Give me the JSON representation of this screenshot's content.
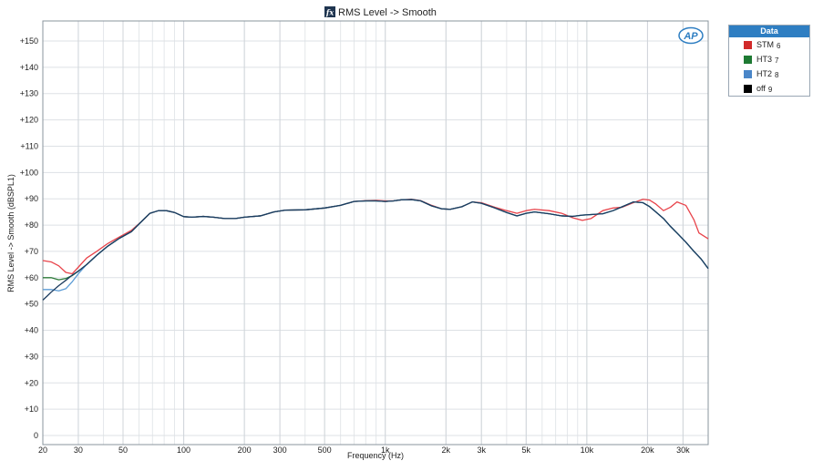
{
  "colors": {
    "accent": "#2e7ec2",
    "STM": "#e8434a",
    "HT3": "#2d7a3a",
    "HT2": "#5b9bd5",
    "off": "#1b3b5e"
  },
  "legend": {
    "title": "Data",
    "items": [
      {
        "label": "STM",
        "num": "6",
        "color": "#d12a2a"
      },
      {
        "label": "HT3",
        "num": "7",
        "color": "#1e7a33"
      },
      {
        "label": "HT2",
        "num": "8",
        "color": "#4a86c8"
      },
      {
        "label": "off",
        "num": "9",
        "color": "#000000"
      }
    ]
  },
  "logo": "AP",
  "chart_data": {
    "type": "line",
    "title": "RMS Level -> Smooth",
    "title_icon": "fx-icon",
    "xlabel": "Frequency (Hz)",
    "ylabel": "RMS Level -> Smooth (dBSPL1)",
    "x_scale": "log",
    "xlim": [
      20,
      40000
    ],
    "ylim": [
      0,
      155
    ],
    "grid": true,
    "x_ticks": [
      {
        "v": 20,
        "l": "20"
      },
      {
        "v": 30,
        "l": "30"
      },
      {
        "v": 50,
        "l": "50"
      },
      {
        "v": 100,
        "l": "100"
      },
      {
        "v": 200,
        "l": "200"
      },
      {
        "v": 300,
        "l": "300"
      },
      {
        "v": 500,
        "l": "500"
      },
      {
        "v": 1000,
        "l": "1k"
      },
      {
        "v": 2000,
        "l": "2k"
      },
      {
        "v": 3000,
        "l": "3k"
      },
      {
        "v": 5000,
        "l": "5k"
      },
      {
        "v": 10000,
        "l": "10k"
      },
      {
        "v": 20000,
        "l": "20k"
      },
      {
        "v": 30000,
        "l": "30k"
      }
    ],
    "y_ticks": [
      {
        "v": 0,
        "l": "0"
      },
      {
        "v": 10,
        "l": "+10"
      },
      {
        "v": 20,
        "l": "+20"
      },
      {
        "v": 30,
        "l": "+30"
      },
      {
        "v": 40,
        "l": "+40"
      },
      {
        "v": 50,
        "l": "+50"
      },
      {
        "v": 60,
        "l": "+60"
      },
      {
        "v": 70,
        "l": "+70"
      },
      {
        "v": 80,
        "l": "+80"
      },
      {
        "v": 90,
        "l": "+90"
      },
      {
        "v": 100,
        "l": "+100"
      },
      {
        "v": 110,
        "l": "+110"
      },
      {
        "v": 120,
        "l": "+120"
      },
      {
        "v": 130,
        "l": "+130"
      },
      {
        "v": 140,
        "l": "+140"
      },
      {
        "v": 150,
        "l": "+150"
      }
    ],
    "series": [
      {
        "name": "STM",
        "color": "#e8434a",
        "points": [
          [
            20,
            66.5
          ],
          [
            22,
            66
          ],
          [
            24,
            64.5
          ],
          [
            26,
            62
          ],
          [
            28,
            61.5
          ],
          [
            30,
            64
          ],
          [
            33,
            67.5
          ],
          [
            37,
            70
          ],
          [
            42,
            73
          ],
          [
            48,
            75.5
          ],
          [
            55,
            78
          ],
          [
            62,
            81.5
          ],
          [
            68,
            84.5
          ],
          [
            75,
            85.5
          ],
          [
            82,
            85.5
          ],
          [
            90,
            84.8
          ],
          [
            100,
            83.2
          ],
          [
            110,
            83
          ],
          [
            125,
            83.3
          ],
          [
            140,
            83
          ],
          [
            160,
            82.5
          ],
          [
            180,
            82.5
          ],
          [
            200,
            83
          ],
          [
            240,
            83.5
          ],
          [
            280,
            85
          ],
          [
            320,
            85.7
          ],
          [
            400,
            85.8
          ],
          [
            500,
            86.5
          ],
          [
            600,
            87.5
          ],
          [
            700,
            89
          ],
          [
            800,
            89.3
          ],
          [
            900,
            89.4
          ],
          [
            1000,
            89.2
          ],
          [
            1100,
            89.2
          ],
          [
            1200,
            89.6
          ],
          [
            1350,
            89.8
          ],
          [
            1500,
            89.3
          ],
          [
            1700,
            87.5
          ],
          [
            1900,
            86.2
          ],
          [
            2100,
            86
          ],
          [
            2400,
            87
          ],
          [
            2700,
            88.8
          ],
          [
            3000,
            88.5
          ],
          [
            3500,
            86.8
          ],
          [
            4000,
            85.5
          ],
          [
            4500,
            84.5
          ],
          [
            5000,
            85.5
          ],
          [
            5500,
            86
          ],
          [
            6500,
            85.5
          ],
          [
            7500,
            84.5
          ],
          [
            8500,
            82.8
          ],
          [
            9500,
            81.8
          ],
          [
            10500,
            82.5
          ],
          [
            12000,
            85.5
          ],
          [
            13500,
            86.5
          ],
          [
            15000,
            86.8
          ],
          [
            17000,
            88.5
          ],
          [
            19000,
            89.8
          ],
          [
            20500,
            89.5
          ],
          [
            22000,
            88
          ],
          [
            24000,
            85.5
          ],
          [
            26000,
            86.8
          ],
          [
            28000,
            88.8
          ],
          [
            31000,
            87.5
          ],
          [
            34000,
            82
          ],
          [
            36000,
            77
          ],
          [
            40000,
            74.8
          ]
        ]
      },
      {
        "name": "HT3",
        "color": "#2d7a3a",
        "points": [
          [
            20,
            60
          ],
          [
            22,
            60
          ],
          [
            24,
            59.2
          ],
          [
            26,
            59.7
          ],
          [
            28,
            60.8
          ],
          [
            30,
            62.5
          ],
          [
            33,
            65
          ],
          [
            37,
            68.5
          ],
          [
            42,
            72
          ],
          [
            48,
            75
          ],
          [
            55,
            77.5
          ],
          [
            62,
            81.5
          ],
          [
            68,
            84.5
          ],
          [
            75,
            85.5
          ],
          [
            82,
            85.5
          ],
          [
            90,
            84.8
          ],
          [
            100,
            83.2
          ],
          [
            110,
            83
          ],
          [
            125,
            83.3
          ],
          [
            140,
            83
          ],
          [
            160,
            82.5
          ],
          [
            180,
            82.5
          ],
          [
            200,
            83
          ],
          [
            240,
            83.5
          ],
          [
            280,
            85
          ],
          [
            320,
            85.7
          ],
          [
            400,
            85.8
          ],
          [
            500,
            86.5
          ],
          [
            600,
            87.5
          ],
          [
            700,
            89
          ],
          [
            800,
            89.2
          ],
          [
            900,
            89.2
          ],
          [
            1000,
            89
          ],
          [
            1100,
            89.2
          ],
          [
            1200,
            89.6
          ],
          [
            1350,
            89.7
          ],
          [
            1500,
            89.2
          ],
          [
            1700,
            87.3
          ],
          [
            1900,
            86.2
          ],
          [
            2100,
            86
          ],
          [
            2400,
            87
          ],
          [
            2700,
            88.8
          ],
          [
            3000,
            88.3
          ],
          [
            3500,
            86.5
          ],
          [
            4000,
            84.8
          ],
          [
            4500,
            83.5
          ],
          [
            5000,
            84.5
          ],
          [
            5500,
            85
          ],
          [
            6500,
            84.3
          ],
          [
            7500,
            83.5
          ],
          [
            8500,
            83.3
          ],
          [
            9500,
            83.8
          ],
          [
            10500,
            84
          ],
          [
            12000,
            84.3
          ],
          [
            13500,
            85.5
          ],
          [
            15000,
            87
          ],
          [
            17000,
            88.8
          ],
          [
            19000,
            88.5
          ],
          [
            20500,
            87
          ],
          [
            22000,
            85
          ],
          [
            24000,
            82.5
          ],
          [
            26000,
            79.5
          ],
          [
            28000,
            77
          ],
          [
            31000,
            73.5
          ],
          [
            34000,
            70
          ],
          [
            37000,
            67
          ],
          [
            40000,
            63.5
          ]
        ]
      },
      {
        "name": "HT2",
        "color": "#5b9bd5",
        "points": [
          [
            20,
            55.5
          ],
          [
            22,
            55.5
          ],
          [
            24,
            55
          ],
          [
            26,
            55.8
          ],
          [
            28,
            58.5
          ],
          [
            30,
            61.5
          ],
          [
            33,
            65
          ],
          [
            37,
            68.5
          ],
          [
            42,
            72
          ],
          [
            48,
            75
          ],
          [
            55,
            77.5
          ],
          [
            62,
            81.5
          ],
          [
            68,
            84.5
          ],
          [
            75,
            85.5
          ],
          [
            82,
            85.5
          ],
          [
            90,
            84.8
          ],
          [
            100,
            83.2
          ],
          [
            110,
            83
          ],
          [
            125,
            83.3
          ],
          [
            140,
            83
          ],
          [
            160,
            82.5
          ],
          [
            180,
            82.5
          ],
          [
            200,
            83
          ],
          [
            240,
            83.5
          ],
          [
            280,
            85
          ],
          [
            320,
            85.7
          ],
          [
            400,
            85.8
          ],
          [
            500,
            86.5
          ],
          [
            600,
            87.5
          ],
          [
            700,
            89
          ],
          [
            800,
            89.2
          ],
          [
            900,
            89.2
          ],
          [
            1000,
            89
          ],
          [
            1100,
            89.2
          ],
          [
            1200,
            89.6
          ],
          [
            1350,
            89.7
          ],
          [
            1500,
            89.2
          ],
          [
            1700,
            87.3
          ],
          [
            1900,
            86.2
          ],
          [
            2100,
            86
          ],
          [
            2400,
            87
          ],
          [
            2700,
            88.8
          ],
          [
            3000,
            88.3
          ],
          [
            3500,
            86.5
          ],
          [
            4000,
            84.8
          ],
          [
            4500,
            83.5
          ],
          [
            5000,
            84.5
          ],
          [
            5500,
            85
          ],
          [
            6500,
            84.3
          ],
          [
            7500,
            83.5
          ],
          [
            8500,
            83.3
          ],
          [
            9500,
            83.8
          ],
          [
            10500,
            84
          ],
          [
            12000,
            84.3
          ],
          [
            13500,
            85.5
          ],
          [
            15000,
            87
          ],
          [
            17000,
            88.8
          ],
          [
            19000,
            88.5
          ],
          [
            20500,
            87
          ],
          [
            22000,
            85
          ],
          [
            24000,
            82.5
          ],
          [
            26000,
            79.5
          ],
          [
            28000,
            77
          ],
          [
            31000,
            73.5
          ],
          [
            34000,
            70
          ],
          [
            37000,
            67
          ],
          [
            40000,
            63.5
          ]
        ]
      },
      {
        "name": "off",
        "color": "#1b3b5e",
        "points": [
          [
            20,
            51.5
          ],
          [
            21,
            53
          ],
          [
            22,
            54.5
          ],
          [
            24,
            57
          ],
          [
            26,
            59
          ],
          [
            28,
            61
          ],
          [
            30,
            62.5
          ],
          [
            33,
            65
          ],
          [
            37,
            68.5
          ],
          [
            42,
            72
          ],
          [
            48,
            75
          ],
          [
            55,
            77.5
          ],
          [
            62,
            81.5
          ],
          [
            68,
            84.5
          ],
          [
            75,
            85.5
          ],
          [
            82,
            85.5
          ],
          [
            90,
            84.8
          ],
          [
            100,
            83.2
          ],
          [
            110,
            83
          ],
          [
            125,
            83.3
          ],
          [
            140,
            83
          ],
          [
            160,
            82.5
          ],
          [
            180,
            82.5
          ],
          [
            200,
            83
          ],
          [
            240,
            83.5
          ],
          [
            280,
            85
          ],
          [
            320,
            85.7
          ],
          [
            400,
            85.8
          ],
          [
            500,
            86.5
          ],
          [
            600,
            87.5
          ],
          [
            700,
            89
          ],
          [
            800,
            89.2
          ],
          [
            900,
            89.2
          ],
          [
            1000,
            89
          ],
          [
            1100,
            89.2
          ],
          [
            1200,
            89.6
          ],
          [
            1350,
            89.7
          ],
          [
            1500,
            89.2
          ],
          [
            1700,
            87.3
          ],
          [
            1900,
            86.2
          ],
          [
            2100,
            86
          ],
          [
            2400,
            87
          ],
          [
            2700,
            88.8
          ],
          [
            3000,
            88.3
          ],
          [
            3500,
            86.5
          ],
          [
            4000,
            84.8
          ],
          [
            4500,
            83.5
          ],
          [
            5000,
            84.5
          ],
          [
            5500,
            85
          ],
          [
            6500,
            84.3
          ],
          [
            7500,
            83.5
          ],
          [
            8500,
            83.3
          ],
          [
            9500,
            83.8
          ],
          [
            10500,
            84
          ],
          [
            12000,
            84.3
          ],
          [
            13500,
            85.5
          ],
          [
            15000,
            87
          ],
          [
            17000,
            88.8
          ],
          [
            19000,
            88.5
          ],
          [
            20500,
            87
          ],
          [
            22000,
            85
          ],
          [
            24000,
            82.5
          ],
          [
            26000,
            79.5
          ],
          [
            28000,
            77
          ],
          [
            31000,
            73.5
          ],
          [
            34000,
            70
          ],
          [
            37000,
            67
          ],
          [
            40000,
            63.5
          ]
        ]
      }
    ]
  }
}
